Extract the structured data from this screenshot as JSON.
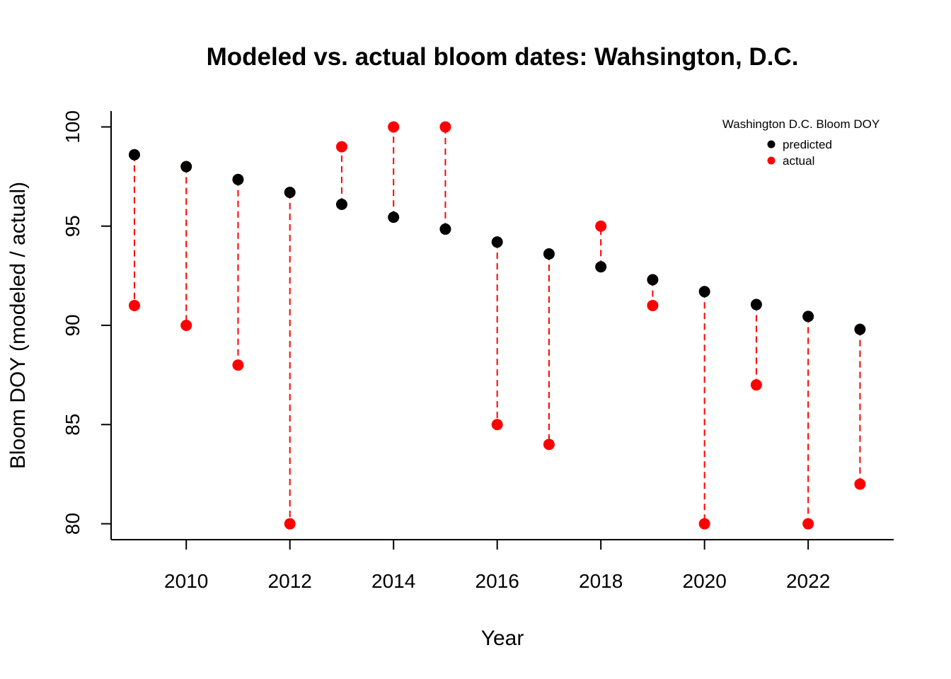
{
  "chart_data": {
    "type": "scatter",
    "title": "Modeled vs. actual bloom dates: Wahsington, D.C.",
    "xlabel": "Year",
    "ylabel": "Bloom DOY (modeled / actual)",
    "xlim": [
      2008.55,
      2023.65
    ],
    "ylim": [
      79.2,
      100.8
    ],
    "x_ticks": [
      2010,
      2012,
      2014,
      2016,
      2018,
      2020,
      2022
    ],
    "y_ticks": [
      80,
      85,
      90,
      95,
      100
    ],
    "legend_title": "Washington D.C. Bloom DOY",
    "legend_position": "top-right",
    "x": [
      2009,
      2010,
      2011,
      2012,
      2013,
      2014,
      2015,
      2016,
      2017,
      2018,
      2019,
      2020,
      2021,
      2022,
      2023
    ],
    "series": [
      {
        "name": "predicted",
        "color": "#000000",
        "values": [
          98.6,
          98.0,
          97.35,
          96.7,
          96.1,
          95.45,
          94.85,
          94.2,
          93.6,
          92.95,
          92.3,
          91.7,
          91.05,
          90.45,
          89.8
        ]
      },
      {
        "name": "actual",
        "color": "#ff0000",
        "values": [
          91,
          90,
          88,
          80,
          99,
          100,
          100,
          85,
          84,
          95,
          91,
          80,
          87,
          80,
          82
        ]
      }
    ],
    "connector_style": "red dashed vertical segments between predicted and actual"
  }
}
